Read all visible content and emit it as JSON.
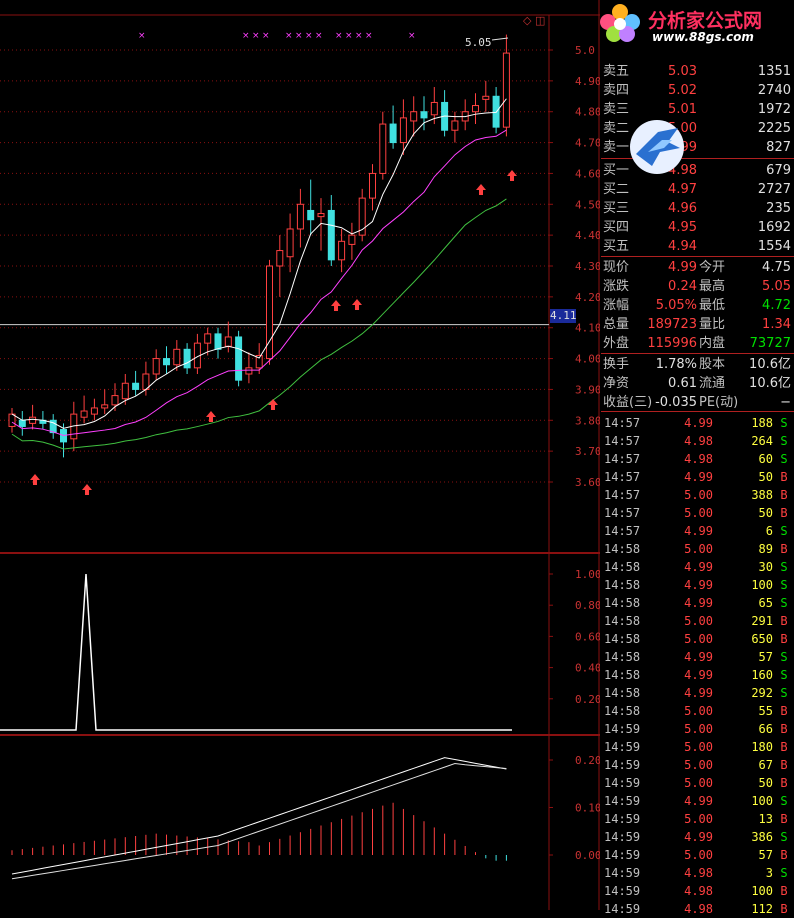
{
  "top_marker": "5.05",
  "price_marker": "4.11",
  "icons": {
    "top_right": "◇ ◫"
  },
  "watermark": {
    "title": "分析家公式网",
    "url": "www.88gs.com"
  },
  "price_axis": [
    "5.0",
    "4.90",
    "4.80",
    "4.70",
    "4.60",
    "4.50",
    "4.40",
    "4.30",
    "4.20",
    "4.10",
    "4.00",
    "3.90",
    "3.80",
    "3.70",
    "3.60"
  ],
  "indicator_axis": [
    "1.00",
    "0.80",
    "0.60",
    "0.40",
    "0.20"
  ],
  "macd_axis": [
    "0.20",
    "0.10",
    "0.00"
  ],
  "sell_orders": [
    {
      "label": "卖五",
      "price": "5.03",
      "vol": "1351"
    },
    {
      "label": "卖四",
      "price": "5.02",
      "vol": "2740"
    },
    {
      "label": "卖三",
      "price": "5.01",
      "vol": "1972"
    },
    {
      "label": "卖二",
      "price": "5.00",
      "vol": "2225"
    },
    {
      "label": "卖一",
      "price": "4.99",
      "vol": "827"
    }
  ],
  "buy_orders": [
    {
      "label": "买一",
      "price": "4.98",
      "vol": "679"
    },
    {
      "label": "买二",
      "price": "4.97",
      "vol": "2727"
    },
    {
      "label": "买三",
      "price": "4.96",
      "vol": "235"
    },
    {
      "label": "买四",
      "price": "4.95",
      "vol": "1692"
    },
    {
      "label": "买五",
      "price": "4.94",
      "vol": "1554"
    }
  ],
  "stats": [
    {
      "l1": "现价",
      "v1": "4.99",
      "l2": "今开",
      "v2": "4.75"
    },
    {
      "l1": "涨跌",
      "v1": "0.24",
      "l2": "最高",
      "v2": "5.05"
    },
    {
      "l1": "涨幅",
      "v1": "5.05%",
      "l2": "最低",
      "v2": "4.72"
    },
    {
      "l1": "总量",
      "v1": "189723",
      "l2": "量比",
      "v2": "1.34"
    },
    {
      "l1": "外盘",
      "v1": "115996",
      "l2": "内盘",
      "v2": "73727"
    }
  ],
  "stats2": [
    {
      "l1": "换手",
      "v1": "1.78%",
      "l2": "股本",
      "v2": "10.6亿"
    },
    {
      "l1": "净资",
      "v1": "0.61",
      "l2": "流通",
      "v2": "10.6亿"
    },
    {
      "l1": "收益(三)",
      "v1": "-0.035",
      "l2": "PE(动)",
      "v2": "−"
    }
  ],
  "ticks": [
    {
      "t": "14:57",
      "p": "4.99",
      "v": "188",
      "s": "S"
    },
    {
      "t": "14:57",
      "p": "4.98",
      "v": "264",
      "s": "S"
    },
    {
      "t": "14:57",
      "p": "4.98",
      "v": "60",
      "s": "S"
    },
    {
      "t": "14:57",
      "p": "4.99",
      "v": "50",
      "s": "B"
    },
    {
      "t": "14:57",
      "p": "5.00",
      "v": "388",
      "s": "B"
    },
    {
      "t": "14:57",
      "p": "5.00",
      "v": "50",
      "s": "B"
    },
    {
      "t": "14:57",
      "p": "4.99",
      "v": "6",
      "s": "S"
    },
    {
      "t": "14:58",
      "p": "5.00",
      "v": "89",
      "s": "B"
    },
    {
      "t": "14:58",
      "p": "4.99",
      "v": "30",
      "s": "S"
    },
    {
      "t": "14:58",
      "p": "4.99",
      "v": "100",
      "s": "S"
    },
    {
      "t": "14:58",
      "p": "4.99",
      "v": "65",
      "s": "S"
    },
    {
      "t": "14:58",
      "p": "5.00",
      "v": "291",
      "s": "B"
    },
    {
      "t": "14:58",
      "p": "5.00",
      "v": "650",
      "s": "B"
    },
    {
      "t": "14:58",
      "p": "4.99",
      "v": "57",
      "s": "S"
    },
    {
      "t": "14:58",
      "p": "4.99",
      "v": "160",
      "s": "S"
    },
    {
      "t": "14:58",
      "p": "4.99",
      "v": "292",
      "s": "S"
    },
    {
      "t": "14:58",
      "p": "5.00",
      "v": "55",
      "s": "B"
    },
    {
      "t": "14:59",
      "p": "5.00",
      "v": "66",
      "s": "B"
    },
    {
      "t": "14:59",
      "p": "5.00",
      "v": "180",
      "s": "B"
    },
    {
      "t": "14:59",
      "p": "5.00",
      "v": "67",
      "s": "B"
    },
    {
      "t": "14:59",
      "p": "5.00",
      "v": "50",
      "s": "B"
    },
    {
      "t": "14:59",
      "p": "4.99",
      "v": "100",
      "s": "S"
    },
    {
      "t": "14:59",
      "p": "5.00",
      "v": "13",
      "s": "B"
    },
    {
      "t": "14:59",
      "p": "4.99",
      "v": "386",
      "s": "S"
    },
    {
      "t": "14:59",
      "p": "5.00",
      "v": "57",
      "s": "B"
    },
    {
      "t": "14:59",
      "p": "4.98",
      "v": "3",
      "s": "S"
    },
    {
      "t": "14:59",
      "p": "4.98",
      "v": "100",
      "s": "B"
    },
    {
      "t": "14:59",
      "p": "4.98",
      "v": "112",
      "s": "B"
    }
  ],
  "colors": {
    "up": "#ff4040",
    "down": "#40e0e0",
    "ma5": "#ffffff",
    "ma10": "#ff40ff",
    "ma20": "#40c040",
    "grid": "#8a1010"
  }
}
